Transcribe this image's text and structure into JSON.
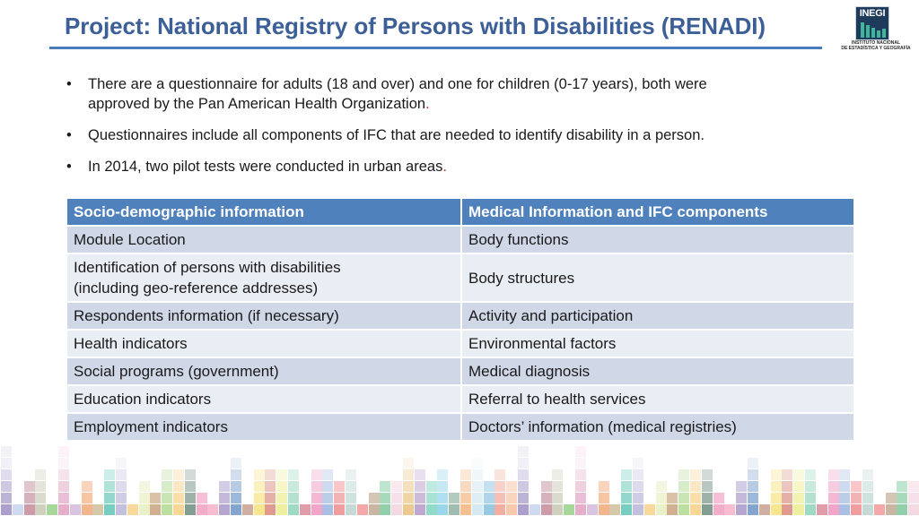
{
  "header": {
    "title": "Project: National Registry of Persons with Disabilities (RENADI)",
    "rule_color": "#4a7cbc",
    "title_color": "#3b5f96"
  },
  "logo": {
    "acronym": "INEGI",
    "caption_line1": "INSTITUTO NACIONAL",
    "caption_line2": "DE ESTADÍSTICA Y GEOGRAFÍA"
  },
  "bullets": [
    {
      "marker": "•",
      "text_line1": "There are a questionnaire for adults (18 and over) and one for children (0-17 years), both were",
      "text_line2": "approved by the Pan American Health Organization",
      "end_mark": "."
    },
    {
      "marker": "•",
      "text": "Questionnaires include all components of IFC that are needed to identify disability in a person."
    },
    {
      "marker": "•",
      "text": "In 2014, two pilot tests were conducted in urban areas",
      "end_mark": "."
    }
  ],
  "table": {
    "header_color": "#4f81bd",
    "row_color_odd": "#d0d8e8",
    "row_color_even": "#e9edf4",
    "columns": [
      "Socio-demographic information",
      "Medical Information and IFC components"
    ],
    "rows": [
      [
        "Module Location",
        "Body functions"
      ],
      [
        "Identification of persons with disabilities",
        "Body structures"
      ],
      [
        "Respondents information (if necessary)",
        "Activity and participation"
      ],
      [
        "Health indicators",
        "Environmental factors"
      ],
      [
        "Social programs (government)",
        "Medical diagnosis"
      ],
      [
        "Education indicators",
        "Referral to health services"
      ],
      [
        "Employment indicators",
        "Doctors’ information (medical registries)"
      ]
    ],
    "row2_left_line2": "(including geo-reference addresses)"
  }
}
